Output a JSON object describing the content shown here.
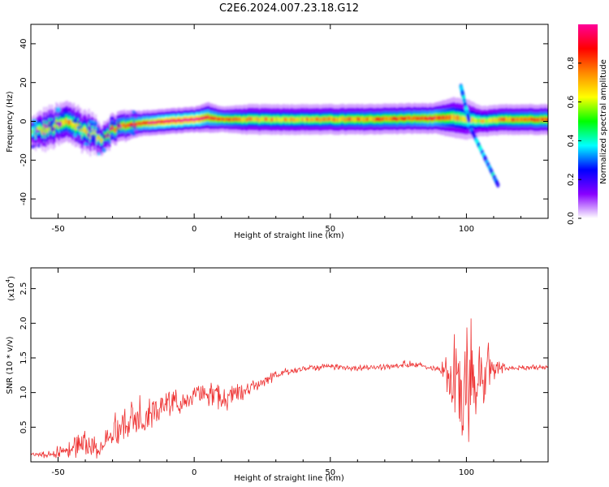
{
  "title": "C2E6.2024.007.23.18.G12",
  "chart_data": [
    {
      "type": "heatmap",
      "xlabel": "Height of straight line (km)",
      "ylabel": "Frequency (Hz)",
      "xlim": [
        -60,
        130
      ],
      "ylim": [
        -50,
        50
      ],
      "x_ticks": [
        "-50",
        "0",
        "50",
        "100"
      ],
      "x_tick_values": [
        -50,
        0,
        50,
        100
      ],
      "y_ticks": [
        "-40",
        "-20",
        "0",
        "20",
        "40"
      ],
      "y_tick_values": [
        -40,
        -20,
        0,
        20,
        40
      ],
      "colorbar": {
        "label": "Normalized spectral amplitude",
        "range": [
          0,
          1
        ],
        "ticks": [
          "0.0",
          "0.2",
          "0.4",
          "0.6",
          "0.8"
        ],
        "tick_values": [
          0,
          0.2,
          0.4,
          0.6,
          0.8
        ],
        "colors": [
          "#ffffff",
          "#8800ff",
          "#0000ff",
          "#00ffff",
          "#00ff00",
          "#ffff00",
          "#ff8800",
          "#ff0000",
          "#ff0099"
        ]
      },
      "ridge": [
        {
          "x": -60,
          "f": -6,
          "width": 3,
          "amp": 0.5
        },
        {
          "x": -55,
          "f": -4,
          "width": 4,
          "amp": 0.6
        },
        {
          "x": -50,
          "f": -2,
          "width": 4,
          "amp": 0.6
        },
        {
          "x": -46,
          "f": 0,
          "width": 4,
          "amp": 0.65
        },
        {
          "x": -42,
          "f": -4,
          "width": 4,
          "amp": 0.6
        },
        {
          "x": -38,
          "f": -6,
          "width": 4,
          "amp": 0.55
        },
        {
          "x": -35,
          "f": -9,
          "width": 3,
          "amp": 0.55
        },
        {
          "x": -30,
          "f": -4,
          "width": 3,
          "amp": 0.7
        },
        {
          "x": -25,
          "f": -2,
          "width": 3,
          "amp": 0.7
        },
        {
          "x": -20,
          "f": -1,
          "width": 2.5,
          "amp": 0.75
        },
        {
          "x": -10,
          "f": 0,
          "width": 2.5,
          "amp": 0.85
        },
        {
          "x": 0,
          "f": 1,
          "width": 2.5,
          "amp": 0.85
        },
        {
          "x": 5,
          "f": 2,
          "width": 3,
          "amp": 0.75
        },
        {
          "x": 10,
          "f": 1,
          "width": 2.5,
          "amp": 0.7
        },
        {
          "x": 20,
          "f": 1,
          "width": 3,
          "amp": 0.6
        },
        {
          "x": 40,
          "f": 1,
          "width": 3,
          "amp": 0.6
        },
        {
          "x": 60,
          "f": 1,
          "width": 3,
          "amp": 0.65
        },
        {
          "x": 80,
          "f": 1.5,
          "width": 3,
          "amp": 0.7
        },
        {
          "x": 88,
          "f": 1.5,
          "width": 3,
          "amp": 0.75
        },
        {
          "x": 95,
          "f": 2,
          "width": 4,
          "amp": 0.6
        },
        {
          "x": 100,
          "f": 1,
          "width": 4,
          "amp": 0.55
        },
        {
          "x": 105,
          "f": 0,
          "width": 3,
          "amp": 0.55
        },
        {
          "x": 115,
          "f": 1,
          "width": 3,
          "amp": 0.65
        },
        {
          "x": 130,
          "f": 1,
          "width": 3,
          "amp": 0.7
        }
      ],
      "branches": [
        {
          "x0": 98,
          "f0": 18,
          "x1": 101,
          "f1": 0,
          "amp": 0.35
        },
        {
          "x0": 101,
          "f0": -2,
          "x1": 112,
          "f1": -34,
          "amp": 0.35
        }
      ]
    },
    {
      "type": "line",
      "xlabel": "Height of straight line (km)",
      "ylabel": "SNR (10 * v/v)",
      "y_multiplier": "(x10",
      "y_multiplier_exp": "4",
      "y_multiplier_close": ")",
      "xlim": [
        -60,
        130
      ],
      "ylim": [
        0,
        28000
      ],
      "x_ticks": [
        "-50",
        "0",
        "50",
        "100"
      ],
      "x_tick_values": [
        -50,
        0,
        50,
        100
      ],
      "y_ticks": [
        "0.5",
        "1.0",
        "1.5",
        "2.0",
        "2.5"
      ],
      "y_tick_values": [
        5000,
        10000,
        15000,
        20000,
        25000
      ],
      "color": "#ee3333",
      "envelope": [
        {
          "x": -60,
          "base": 1000,
          "amp": 500
        },
        {
          "x": -50,
          "base": 1200,
          "amp": 800
        },
        {
          "x": -45,
          "base": 2000,
          "amp": 1500
        },
        {
          "x": -40,
          "base": 2500,
          "amp": 3000
        },
        {
          "x": -35,
          "base": 2000,
          "amp": 1500
        },
        {
          "x": -30,
          "base": 4500,
          "amp": 3000
        },
        {
          "x": -25,
          "base": 5500,
          "amp": 3500
        },
        {
          "x": -20,
          "base": 6500,
          "amp": 2500
        },
        {
          "x": -10,
          "base": 8000,
          "amp": 2500
        },
        {
          "x": 0,
          "base": 9500,
          "amp": 1500
        },
        {
          "x": 5,
          "base": 10000,
          "amp": 2000
        },
        {
          "x": 10,
          "base": 9000,
          "amp": 2500
        },
        {
          "x": 20,
          "base": 10500,
          "amp": 1200
        },
        {
          "x": 30,
          "base": 12500,
          "amp": 800
        },
        {
          "x": 40,
          "base": 13500,
          "amp": 600
        },
        {
          "x": 50,
          "base": 13800,
          "amp": 500
        },
        {
          "x": 60,
          "base": 13500,
          "amp": 500
        },
        {
          "x": 70,
          "base": 13700,
          "amp": 500
        },
        {
          "x": 80,
          "base": 14000,
          "amp": 500
        },
        {
          "x": 90,
          "base": 13500,
          "amp": 500
        },
        {
          "x": 93,
          "base": 13000,
          "amp": 4000
        },
        {
          "x": 97,
          "base": 10000,
          "amp": 10000
        },
        {
          "x": 100,
          "base": 12000,
          "amp": 14000
        },
        {
          "x": 103,
          "base": 10000,
          "amp": 8000
        },
        {
          "x": 107,
          "base": 13000,
          "amp": 6000
        },
        {
          "x": 110,
          "base": 13500,
          "amp": 2000
        },
        {
          "x": 115,
          "base": 13500,
          "amp": 400
        },
        {
          "x": 130,
          "base": 13700,
          "amp": 400
        }
      ]
    }
  ]
}
